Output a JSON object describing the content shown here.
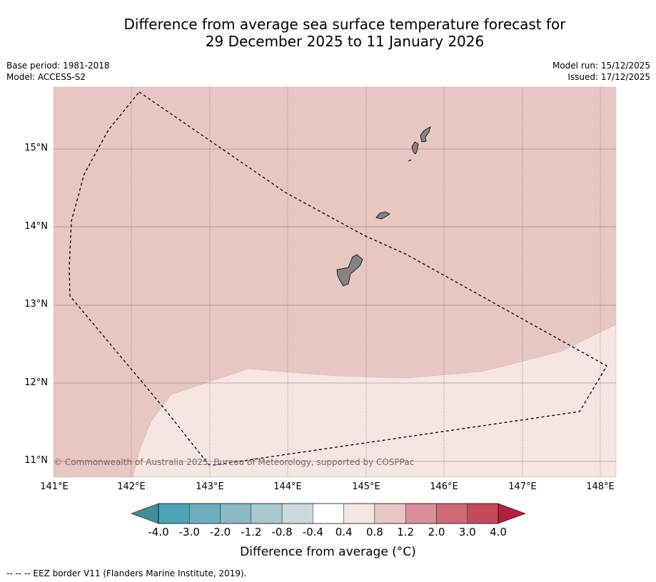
{
  "title": {
    "line1": "Difference from average sea surface temperature forecast for",
    "line2": "29 December 2025 to 11 January 2026"
  },
  "meta_left": {
    "base_period": "Base period: 1981-2018",
    "model": "Model: ACCESS-S2"
  },
  "meta_right": {
    "model_run": "Model run: 15/12/2025",
    "issued": "Issued: 17/12/2025"
  },
  "map": {
    "lon_range": [
      141.0,
      148.2
    ],
    "lat_range": [
      10.8,
      15.8
    ],
    "lat_ticks": [
      {
        "value": 15,
        "label": "15°N"
      },
      {
        "value": 14,
        "label": "14°N"
      },
      {
        "value": 13,
        "label": "13°N"
      },
      {
        "value": 12,
        "label": "12°N"
      },
      {
        "value": 11,
        "label": "11°N"
      }
    ],
    "lon_ticks": [
      {
        "value": 141,
        "label": "141°E"
      },
      {
        "value": 142,
        "label": "142°E"
      },
      {
        "value": 143,
        "label": "143°E"
      },
      {
        "value": 144,
        "label": "144°E"
      },
      {
        "value": 145,
        "label": "145°E"
      },
      {
        "value": 146,
        "label": "146°E"
      },
      {
        "value": 147,
        "label": "147°E"
      },
      {
        "value": 148,
        "label": "148°E"
      }
    ],
    "regions": [
      {
        "name": "warm-anomaly-region",
        "category": "0.8 to 1.2",
        "color": "#e8c6c1"
      },
      {
        "name": "slight-warm-region",
        "category": "0.4 to 0.8",
        "color": "#f5e6e4"
      }
    ],
    "islands": [
      "Guam",
      "Rota",
      "Tinian",
      "Saipan"
    ],
    "land_color": "#888282",
    "copyright": "© Commonwealth of Australia 2025, Bureau of Meteorology, supported by COSPPac"
  },
  "colorbar": {
    "colors": [
      "#4aa4b5",
      "#6daebe",
      "#8ab8c4",
      "#a9c7cc",
      "#ccdadd",
      "#ffffff",
      "#f5e6e4",
      "#e8c6c1",
      "#d98f97",
      "#cf6a77",
      "#c24a5a"
    ],
    "low_extend_color": "#3f8d99",
    "high_extend_color": "#b3203d",
    "labels": [
      "-4.0",
      "-3.0",
      "-2.0",
      "-1.2",
      "-0.8",
      "-0.4",
      "0.4",
      "0.8",
      "1.2",
      "2.0",
      "3.0",
      "4.0"
    ],
    "title": "Difference from average (°C)"
  },
  "footer": "--  --  -- EEZ border V11 (Flanders Marine Institute, 2019)."
}
